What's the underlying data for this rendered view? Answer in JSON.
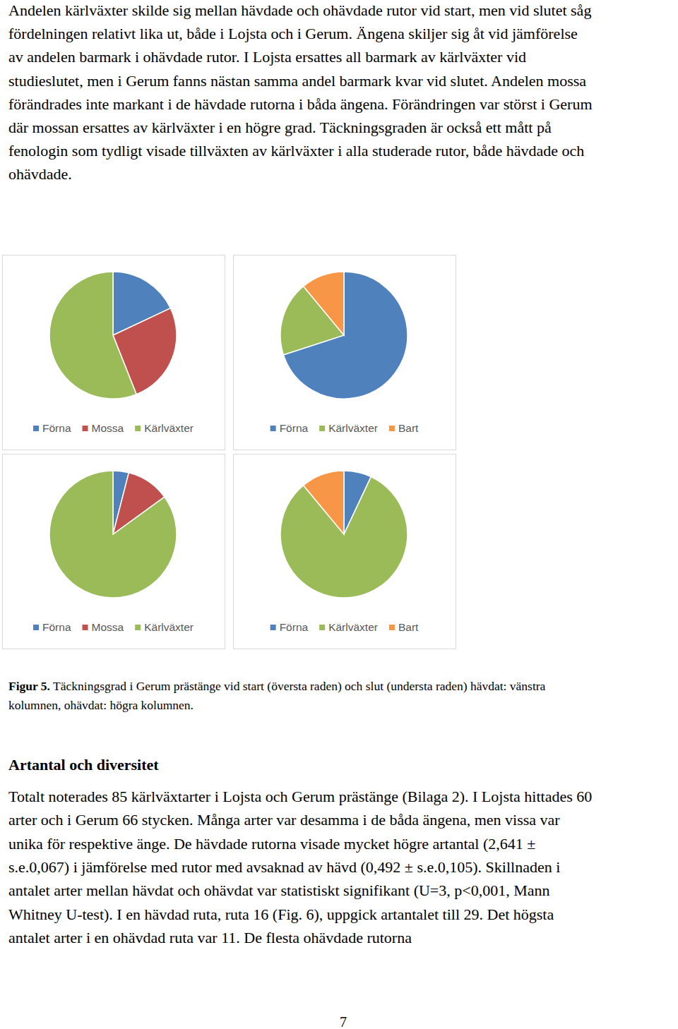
{
  "text_top_lines": [
    "Andelen kärlväxter skilde sig mellan hävdade och ohävdade rutor vid start, men vid slutet såg",
    "fördelningen relativt lika ut, både i Lojsta och i Gerum. Ängena skiljer sig åt vid jämförelse",
    "av andelen barmark i ohävdade rutor. I Lojsta ersattes all barmark av kärlväxter vid",
    "studieslutet, men i Gerum fanns nästan samma andel barmark kvar vid slutet. Andelen mossa",
    "förändrades inte markant i de hävdade rutorna i båda ängena. Förändringen var störst i Gerum",
    "där mossan ersattes av kärlväxter i en högre grad. Täckningsgraden är också ett mått på",
    "fenologin som tydligt visade tillväxten av kärlväxter i alla studerade rutor, både hävdade och",
    "ohävdade."
  ],
  "chart_data": [
    {
      "type": "pie",
      "categories": [
        "Förna",
        "Mossa",
        "Kärlväxter"
      ],
      "values": [
        18,
        26,
        56
      ],
      "colors": [
        "#4f81bd",
        "#c0504d",
        "#9bbb59"
      ],
      "legend": "bottom"
    },
    {
      "type": "pie",
      "categories": [
        "Förna",
        "Kärlväxter",
        "Bart"
      ],
      "values": [
        70,
        19,
        11
      ],
      "colors": [
        "#4f81bd",
        "#9bbb59",
        "#f79646"
      ],
      "legend": "bottom"
    },
    {
      "type": "pie",
      "categories": [
        "Förna",
        "Mossa",
        "Kärlväxter"
      ],
      "values": [
        4,
        11,
        85
      ],
      "colors": [
        "#4f81bd",
        "#c0504d",
        "#9bbb59"
      ],
      "legend": "bottom"
    },
    {
      "type": "pie",
      "categories": [
        "Förna",
        "Kärlväxter",
        "Bart"
      ],
      "values": [
        7,
        82,
        11
      ],
      "colors": [
        "#4f81bd",
        "#9bbb59",
        "#f79646"
      ],
      "legend": "bottom"
    }
  ],
  "caption": {
    "label": "Figur 5.",
    "lines": [
      " Täckningsgrad i Gerum prästänge vid start (översta raden) och slut (understa raden) hävdat: vänstra",
      "kolumnen, ohävdat: högra kolumnen."
    ]
  },
  "heading": "Artantal och diversitet",
  "text_bottom_lines": [
    "Totalt noterades 85 kärlväxtarter i Lojsta och Gerum prästänge (Bilaga 2). I Lojsta hittades 60",
    "arter och i Gerum 66 stycken. Många arter var desamma i de båda ängena, men vissa var",
    "unika för respektive änge. De hävdade rutorna visade mycket högre artantal (2,641 ±",
    "s.e.0,067) i jämförelse med rutor med avsaknad av hävd (0,492 ± s.e.0,105). Skillnaden i",
    "antalet arter mellan hävdat och ohävdat var statistiskt signifikant (U=3, p<0,001, Mann",
    "Whitney U-test). I en hävdad ruta, ruta 16 (Fig. 6), uppgick artantalet till 29. Det högsta",
    "antalet arter i en ohävdad ruta var 11. De flesta ohävdade rutorna"
  ],
  "page_number": "7"
}
